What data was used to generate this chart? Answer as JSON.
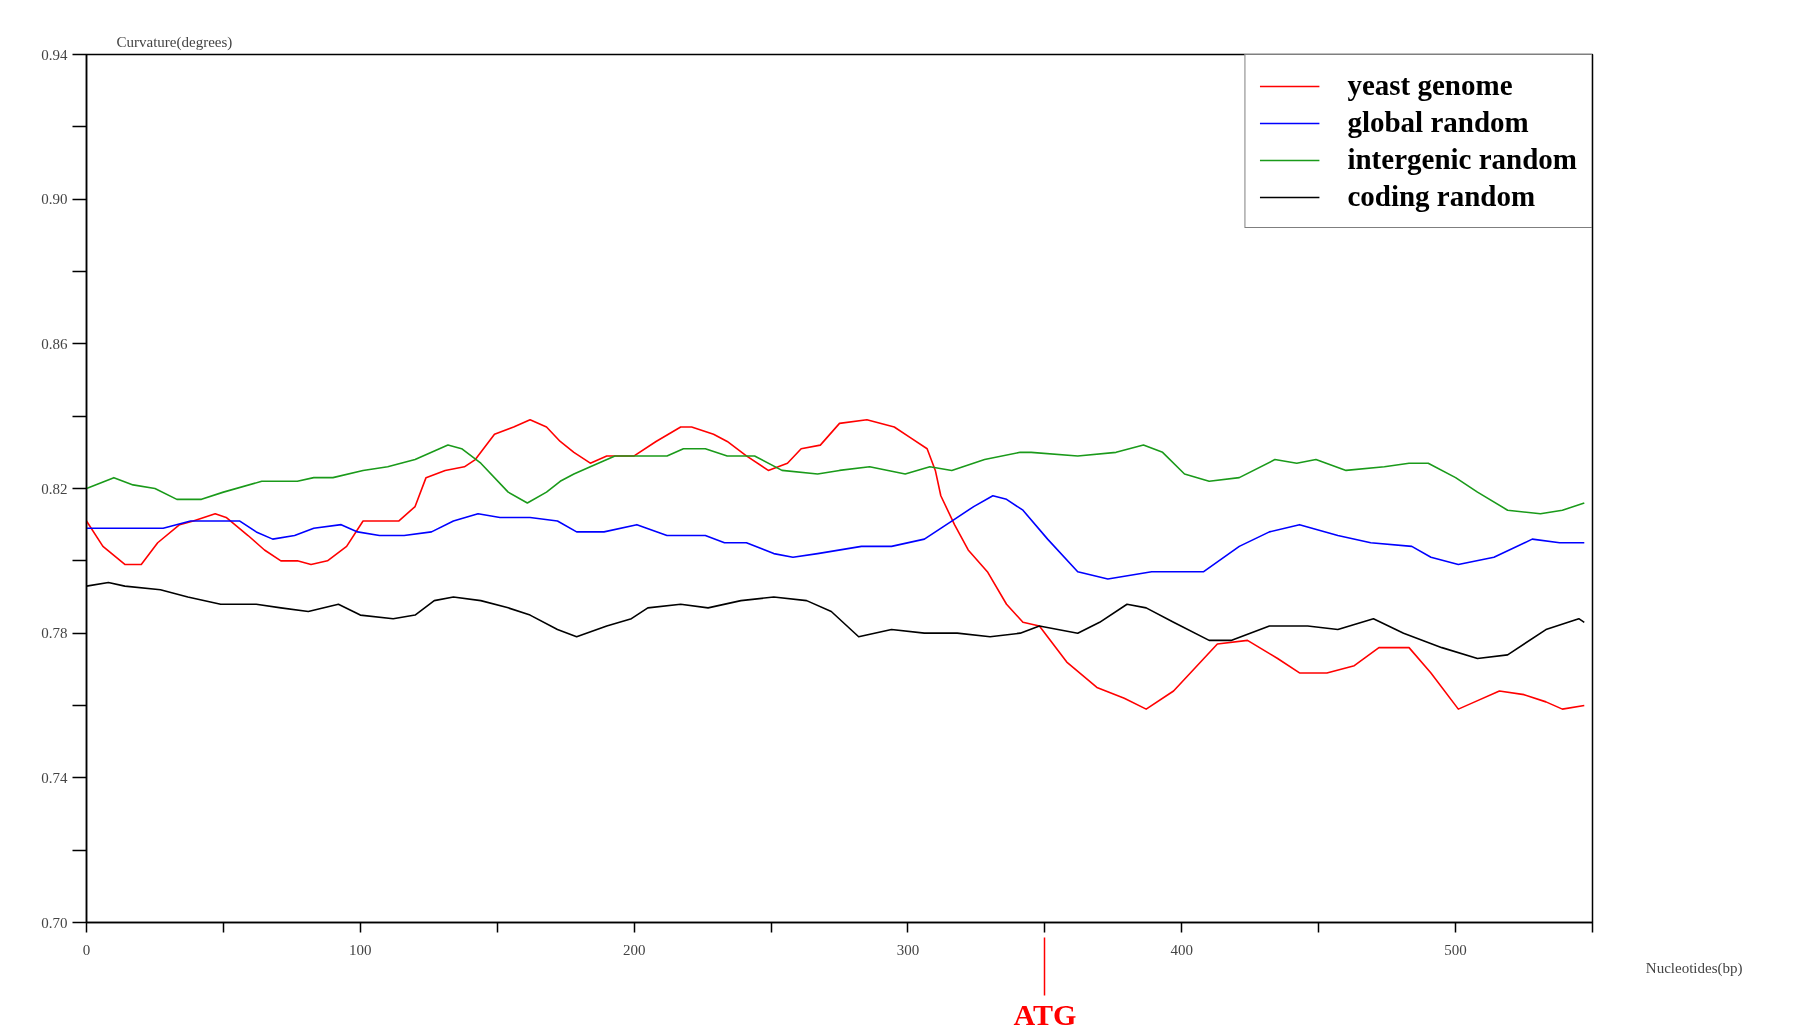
{
  "chart_data": {
    "type": "line",
    "ylabel": "Curvature(degrees)",
    "xlabel": "Nucleotides(bp)",
    "xlim": [
      0,
      550
    ],
    "ylim": [
      0.7,
      0.94
    ],
    "xticks": [
      0,
      {
        "value": 50,
        "label": null
      },
      100,
      {
        "value": 150,
        "label": null
      },
      200,
      {
        "value": 250,
        "label": null
      },
      300,
      {
        "value": 350,
        "label": null
      },
      400,
      {
        "value": 450,
        "label": null
      },
      500,
      {
        "value": 550,
        "label": null
      }
    ],
    "yticks": [
      {
        "value": 0.7,
        "label": "0.70"
      },
      {
        "value": 0.72,
        "label": null
      },
      0.74,
      {
        "value": 0.76,
        "label": null
      },
      0.78,
      {
        "value": 0.8,
        "label": null
      },
      0.82,
      {
        "value": 0.84,
        "label": null
      },
      0.86,
      {
        "value": 0.88,
        "label": null
      },
      {
        "value": 0.9,
        "label": "0.90"
      },
      {
        "value": 0.92,
        "label": null
      },
      0.94
    ],
    "grid": false,
    "legend": "top right",
    "marker": "none",
    "line_style": "solid",
    "ref_lines": [
      {
        "axis": "x",
        "value": 350,
        "label": "ATG",
        "color": "#ff0000"
      }
    ],
    "series": [
      {
        "name": "yeast genome",
        "color": "#ff0000",
        "x": [
          0,
          6,
          14,
          20,
          26,
          34,
          39,
          47,
          51,
          59,
          65,
          71,
          77,
          82,
          88,
          95,
          101,
          114,
          120,
          124,
          131,
          138,
          142,
          149,
          156,
          162,
          168,
          173,
          178,
          184,
          190,
          200,
          208,
          217,
          221,
          229,
          234,
          241,
          249,
          256,
          261,
          268,
          275,
          285,
          295,
          301,
          307,
          310,
          312,
          317,
          322,
          329,
          336,
          342,
          348,
          358,
          369,
          379,
          387,
          397,
          413,
          424,
          435,
          443,
          453,
          463,
          472,
          483,
          491,
          501,
          507,
          516,
          525,
          533,
          539,
          547
        ],
        "values": [
          0.811,
          0.804,
          0.799,
          0.799,
          0.805,
          0.81,
          0.811,
          0.813,
          0.812,
          0.807,
          0.803,
          0.8,
          0.8,
          0.799,
          0.8,
          0.804,
          0.811,
          0.811,
          0.815,
          0.823,
          0.825,
          0.826,
          0.828,
          0.835,
          0.837,
          0.839,
          0.837,
          0.833,
          0.83,
          0.827,
          0.829,
          0.829,
          0.833,
          0.837,
          0.837,
          0.835,
          0.833,
          0.829,
          0.825,
          0.827,
          0.831,
          0.832,
          0.838,
          0.839,
          0.837,
          0.834,
          0.831,
          0.825,
          0.818,
          0.81,
          0.803,
          0.797,
          0.788,
          0.783,
          0.782,
          0.772,
          0.765,
          0.762,
          0.759,
          0.764,
          0.777,
          0.778,
          0.773,
          0.769,
          0.769,
          0.771,
          0.776,
          0.776,
          0.769,
          0.759,
          0.761,
          0.764,
          0.763,
          0.761,
          0.759,
          0.76
        ]
      },
      {
        "name": "global random",
        "color": "#0000ff",
        "x": [
          0,
          12,
          28,
          38,
          48,
          56,
          62,
          68,
          76,
          83,
          93,
          99,
          107,
          116,
          126,
          134,
          143,
          151,
          162,
          172,
          179,
          189,
          201,
          212,
          226,
          233,
          241,
          251,
          258,
          267,
          283,
          294,
          306,
          316,
          324,
          331,
          336,
          342,
          351,
          362,
          373,
          389,
          408,
          421,
          432,
          443,
          457,
          469,
          484,
          491,
          501,
          514,
          528,
          538,
          547
        ],
        "values": [
          0.809,
          0.809,
          0.809,
          0.811,
          0.811,
          0.811,
          0.808,
          0.806,
          0.807,
          0.809,
          0.81,
          0.808,
          0.807,
          0.807,
          0.808,
          0.811,
          0.813,
          0.812,
          0.812,
          0.811,
          0.808,
          0.808,
          0.81,
          0.807,
          0.807,
          0.805,
          0.805,
          0.802,
          0.801,
          0.802,
          0.804,
          0.804,
          0.806,
          0.811,
          0.815,
          0.818,
          0.817,
          0.814,
          0.806,
          0.797,
          0.795,
          0.797,
          0.797,
          0.804,
          0.808,
          0.81,
          0.807,
          0.805,
          0.804,
          0.801,
          0.799,
          0.801,
          0.806,
          0.805,
          0.805
        ]
      },
      {
        "name": "intergenic random",
        "color": "#1a9a1a",
        "x": [
          0,
          10,
          17,
          25,
          33,
          42,
          50,
          64,
          77,
          83,
          90,
          101,
          110,
          120,
          126,
          132,
          137,
          144,
          154,
          161,
          168,
          173,
          178,
          184,
          193,
          202,
          212,
          218,
          226,
          234,
          244,
          254,
          267,
          275,
          286,
          299,
          308,
          316,
          328,
          341,
          345,
          362,
          376,
          386,
          393,
          401,
          410,
          421,
          434,
          442,
          449,
          460,
          474,
          483,
          490,
          500,
          508,
          519,
          531,
          539,
          547
        ],
        "values": [
          0.82,
          0.823,
          0.821,
          0.82,
          0.817,
          0.817,
          0.819,
          0.822,
          0.822,
          0.823,
          0.823,
          0.825,
          0.826,
          0.828,
          0.83,
          0.832,
          0.831,
          0.827,
          0.819,
          0.816,
          0.819,
          0.822,
          0.824,
          0.826,
          0.829,
          0.829,
          0.829,
          0.831,
          0.831,
          0.829,
          0.829,
          0.825,
          0.824,
          0.825,
          0.826,
          0.824,
          0.826,
          0.825,
          0.828,
          0.83,
          0.83,
          0.829,
          0.83,
          0.832,
          0.83,
          0.824,
          0.822,
          0.823,
          0.828,
          0.827,
          0.828,
          0.825,
          0.826,
          0.827,
          0.827,
          0.823,
          0.819,
          0.814,
          0.813,
          0.814,
          0.816
        ]
      },
      {
        "name": "coding random",
        "color": "#000000",
        "x": [
          0,
          8,
          14,
          27,
          37,
          49,
          62,
          71,
          81,
          92,
          100,
          112,
          120,
          127,
          134,
          144,
          154,
          162,
          172,
          179,
          190,
          199,
          205,
          217,
          227,
          239,
          251,
          263,
          272,
          282,
          294,
          306,
          318,
          330,
          341,
          348,
          362,
          370,
          380,
          387,
          397,
          410,
          418,
          432,
          446,
          457,
          470,
          481,
          495,
          508,
          519,
          533,
          545,
          547
        ],
        "values": [
          0.793,
          0.794,
          0.793,
          0.792,
          0.79,
          0.788,
          0.788,
          0.787,
          0.786,
          0.788,
          0.785,
          0.784,
          0.785,
          0.789,
          0.79,
          0.789,
          0.787,
          0.785,
          0.781,
          0.779,
          0.782,
          0.784,
          0.787,
          0.788,
          0.787,
          0.789,
          0.79,
          0.789,
          0.786,
          0.779,
          0.781,
          0.78,
          0.78,
          0.779,
          0.78,
          0.782,
          0.78,
          0.783,
          0.788,
          0.787,
          0.783,
          0.778,
          0.778,
          0.782,
          0.782,
          0.781,
          0.784,
          0.78,
          0.776,
          0.773,
          0.774,
          0.781,
          0.784,
          0.783
        ]
      }
    ]
  }
}
